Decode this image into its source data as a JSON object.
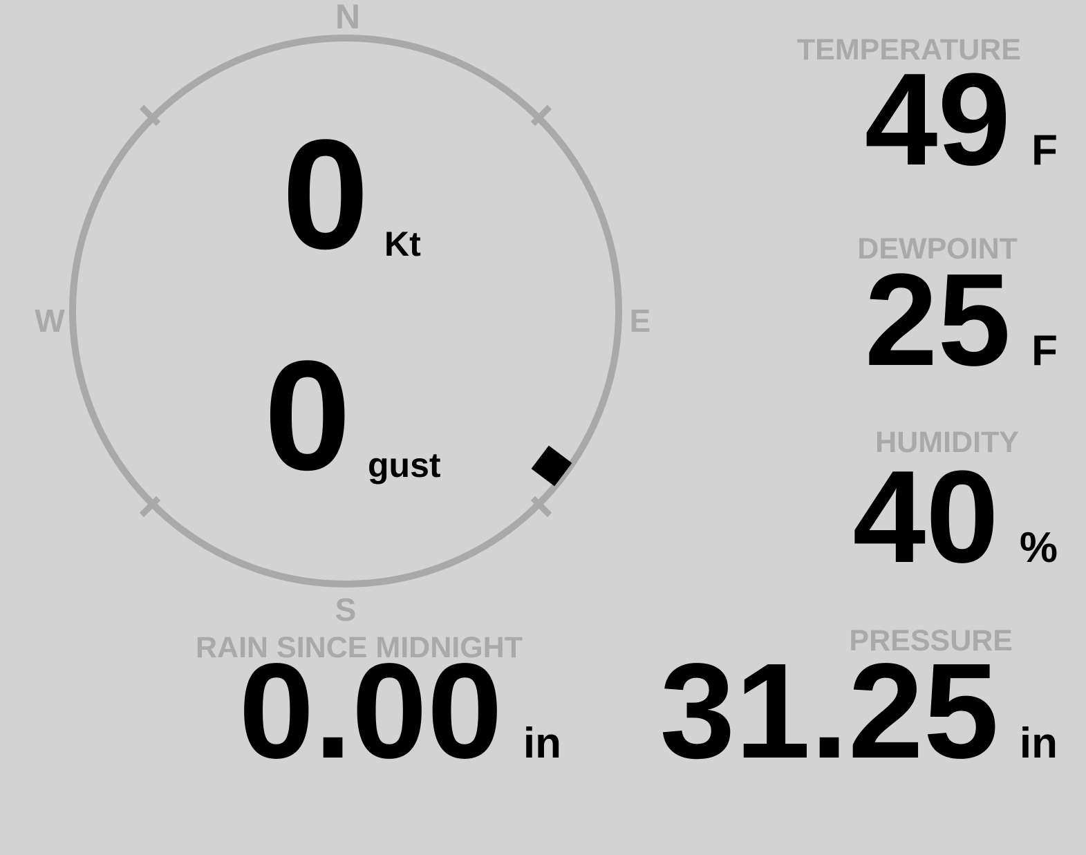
{
  "colors": {
    "background": "#d3d3d3",
    "muted": "#a9a9a9",
    "value": "#000000"
  },
  "compass": {
    "cardinals": {
      "north": "N",
      "east": "E",
      "south": "S",
      "west": "W"
    },
    "wind_speed": {
      "value": "0",
      "unit": "Kt"
    },
    "wind_gust": {
      "value": "0",
      "unit": "gust"
    },
    "wind_direction_deg": 127
  },
  "metrics": {
    "temperature": {
      "label": "TEMPERATURE",
      "value": "49",
      "unit": "F"
    },
    "dewpoint": {
      "label": "DEWPOINT",
      "value": "25",
      "unit": "F"
    },
    "humidity": {
      "label": "HUMIDITY",
      "value": "40",
      "unit": "%"
    },
    "pressure": {
      "label": "PRESSURE",
      "value": "31.25",
      "unit": "in"
    },
    "rain_since_midnight": {
      "label": "RAIN SINCE MIDNIGHT",
      "value": "0.00",
      "unit": "in"
    }
  }
}
